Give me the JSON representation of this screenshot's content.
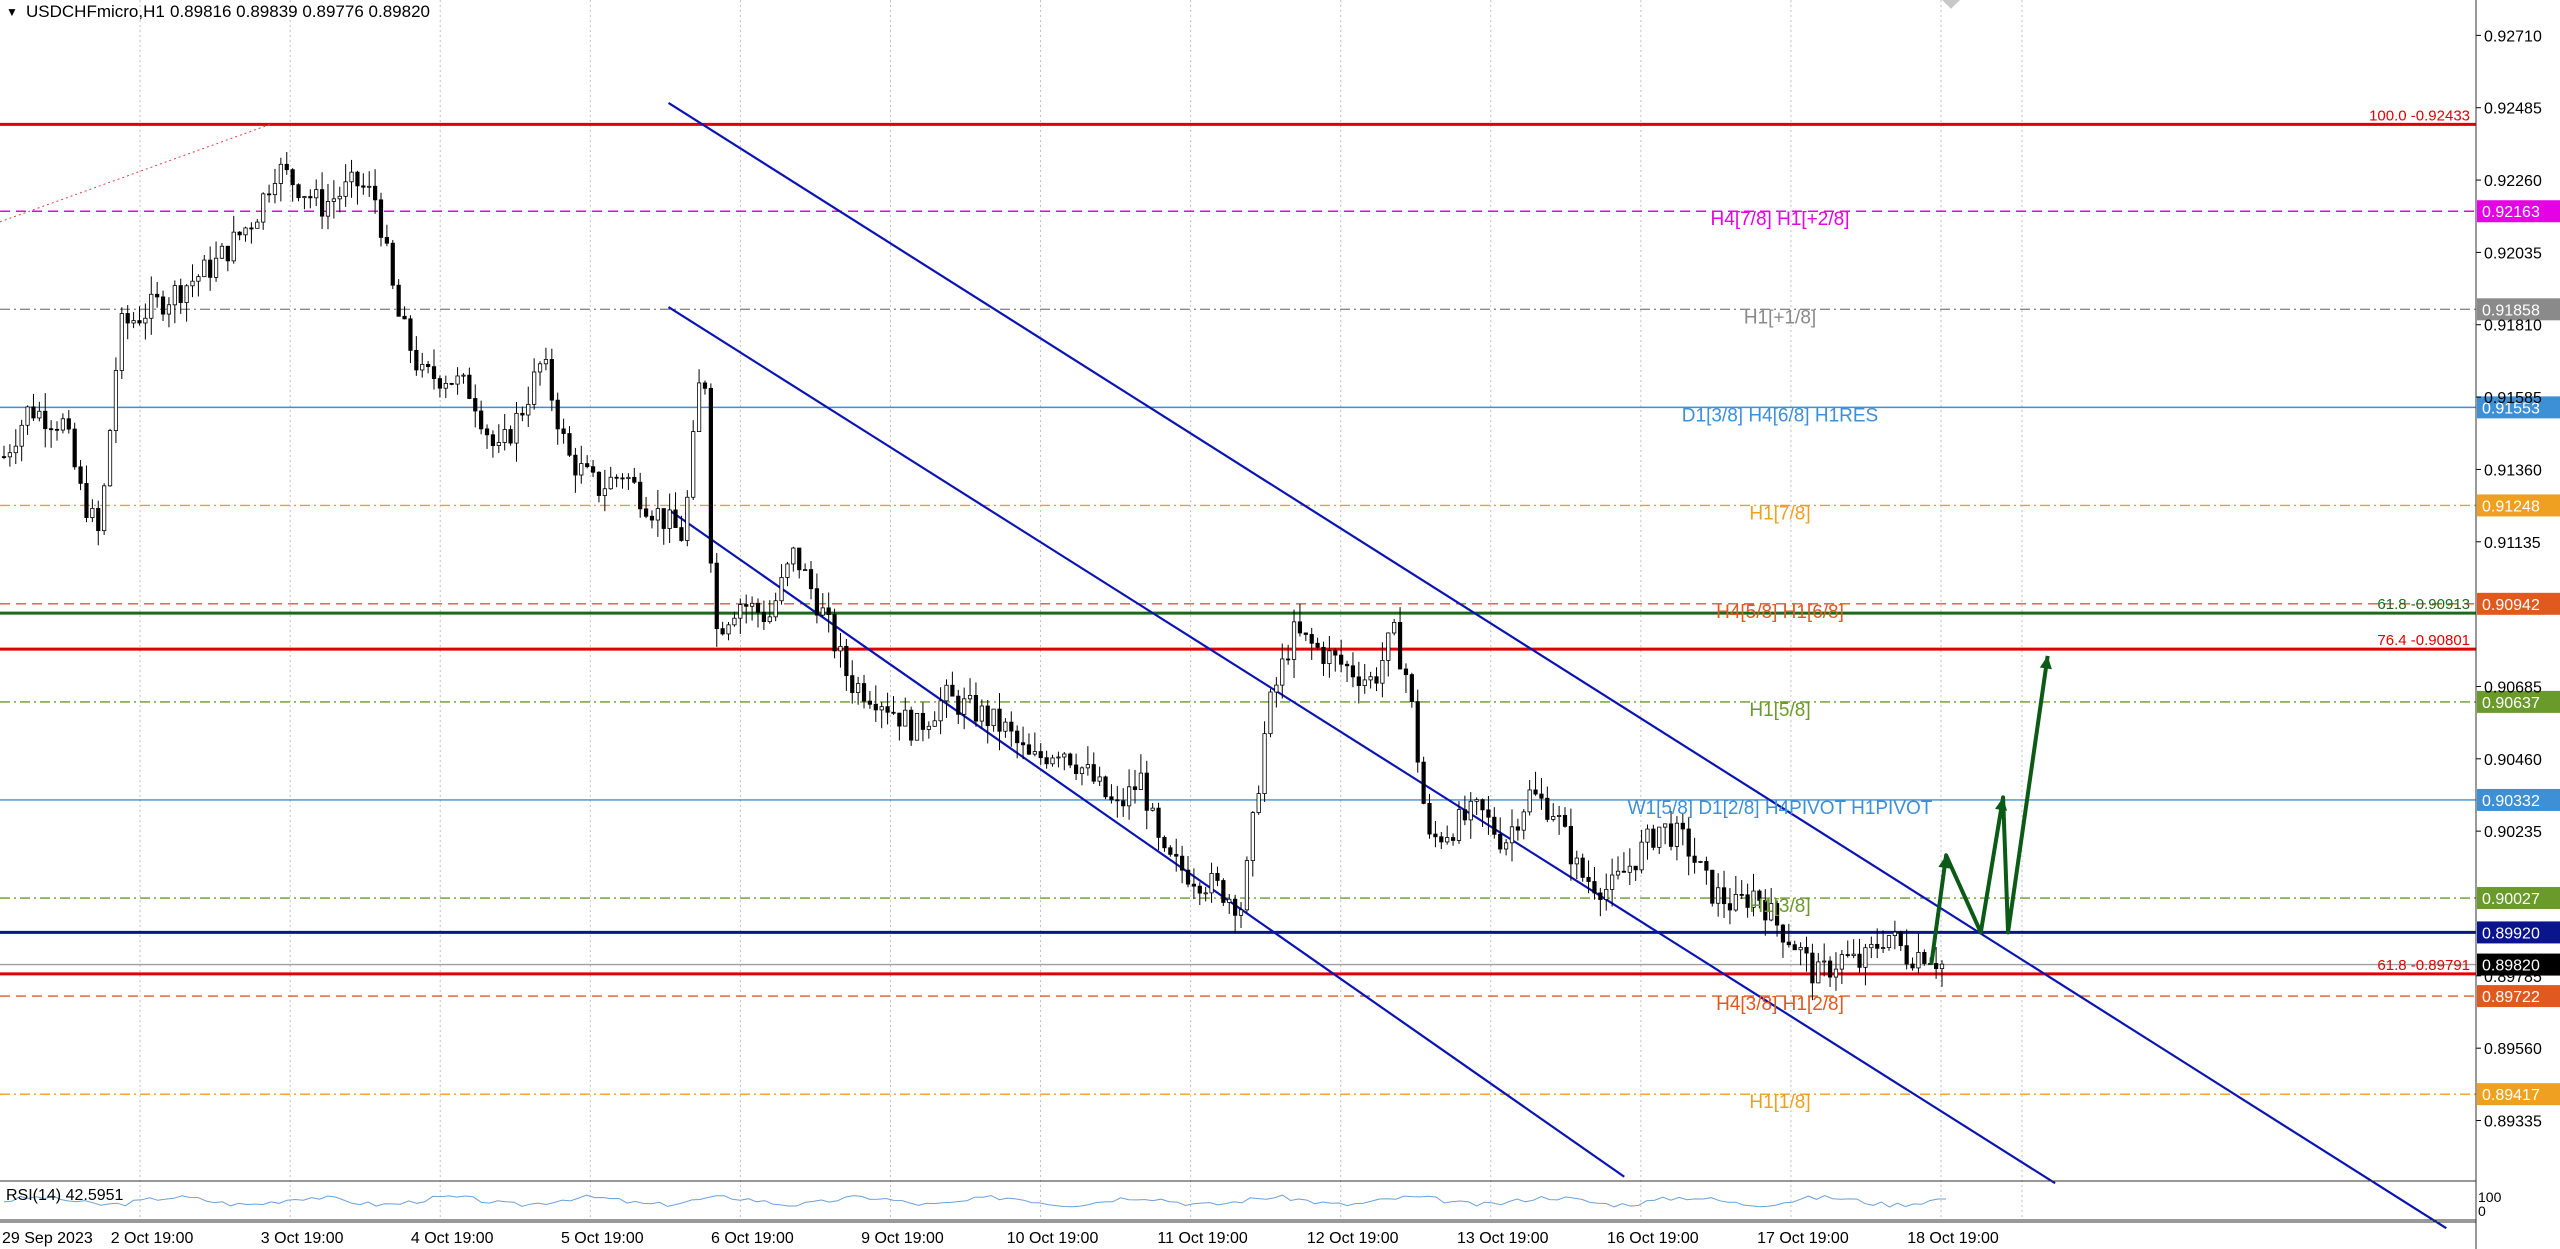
{
  "header": {
    "menu_arrow": "▼",
    "symbol_info": "USDCHFmicro,H1",
    "ohlc": "0.89816 0.89839 0.89776 0.89820"
  },
  "rsi_label": "RSI(14) 42.5951",
  "rsi_scale": [
    "100",
    "0"
  ],
  "colors": {
    "bull_candle": "#ffffff",
    "bear_candle": "#000000",
    "channel": "#0a14b4",
    "fib": "#e00000",
    "arrow": "#0b5a16",
    "grid": "#9a9a9a"
  },
  "chart_data": {
    "type": "candlestick",
    "symbol": "USDCHFmicro",
    "timeframe": "H1",
    "ylim": [
      0.8915,
      0.9282
    ],
    "x_labels": [
      "29 Sep 2023",
      "2 Oct 19:00",
      "3 Oct 19:00",
      "4 Oct 19:00",
      "5 Oct 19:00",
      "6 Oct 19:00",
      "9 Oct 19:00",
      "10 Oct 19:00",
      "11 Oct 19:00",
      "12 Oct 19:00",
      "13 Oct 19:00",
      "16 Oct 19:00",
      "17 Oct 19:00",
      "18 Oct 19:00"
    ],
    "y_ticks": [
      "0.92710",
      "0.92485",
      "0.92260",
      "0.92035",
      "0.91810",
      "0.91585",
      "0.91360",
      "0.91135",
      "0.90685",
      "0.90460",
      "0.90235",
      "0.89785",
      "0.89560",
      "0.89335"
    ],
    "price_path": [
      [
        0,
        0.914
      ],
      [
        0.5,
        0.9155
      ],
      [
        1.2,
        0.915
      ],
      [
        1.5,
        0.913
      ],
      [
        1.9,
        0.9115
      ],
      [
        2.3,
        0.918
      ],
      [
        2.8,
        0.9185
      ],
      [
        3.3,
        0.919
      ],
      [
        4.2,
        0.92
      ],
      [
        5.0,
        0.9215
      ],
      [
        5.4,
        0.923
      ],
      [
        5.8,
        0.9225
      ],
      [
        6.3,
        0.9218
      ],
      [
        7.0,
        0.9225
      ],
      [
        7.4,
        0.922
      ],
      [
        7.8,
        0.9185
      ],
      [
        8.3,
        0.9165
      ],
      [
        8.8,
        0.9165
      ],
      [
        9.3,
        0.916
      ],
      [
        9.8,
        0.914
      ],
      [
        10.3,
        0.9155
      ],
      [
        10.7,
        0.917
      ],
      [
        11.2,
        0.914
      ],
      [
        11.8,
        0.913
      ],
      [
        12.3,
        0.9135
      ],
      [
        12.8,
        0.9125
      ],
      [
        13.5,
        0.9115
      ],
      [
        13.9,
        0.9175
      ],
      [
        14.1,
        0.9085
      ],
      [
        14.6,
        0.9095
      ],
      [
        15.2,
        0.909
      ],
      [
        15.7,
        0.911
      ],
      [
        16.3,
        0.909
      ],
      [
        16.8,
        0.907
      ],
      [
        17.4,
        0.9065
      ],
      [
        18.1,
        0.9055
      ],
      [
        18.7,
        0.9065
      ],
      [
        19.4,
        0.906
      ],
      [
        19.9,
        0.9055
      ],
      [
        20.4,
        0.9045
      ],
      [
        21.0,
        0.905
      ],
      [
        21.6,
        0.904
      ],
      [
        22.1,
        0.903
      ],
      [
        22.6,
        0.904
      ],
      [
        23.0,
        0.9015
      ],
      [
        23.6,
        0.901
      ],
      [
        24.2,
        0.9005
      ],
      [
        24.6,
        0.9
      ],
      [
        25.1,
        0.906
      ],
      [
        25.6,
        0.9085
      ],
      [
        26.1,
        0.908
      ],
      [
        26.6,
        0.9075
      ],
      [
        27.2,
        0.907
      ],
      [
        27.6,
        0.9085
      ],
      [
        27.9,
        0.907
      ],
      [
        28.3,
        0.902
      ],
      [
        28.8,
        0.9025
      ],
      [
        29.3,
        0.903
      ],
      [
        29.8,
        0.902
      ],
      [
        30.3,
        0.9035
      ],
      [
        30.8,
        0.903
      ],
      [
        31.3,
        0.901
      ],
      [
        31.9,
        0.9005
      ],
      [
        32.4,
        0.9015
      ],
      [
        32.9,
        0.9025
      ],
      [
        33.4,
        0.902
      ],
      [
        33.9,
        0.9005
      ],
      [
        34.4,
        0.9
      ],
      [
        34.8,
        0.9005
      ],
      [
        35.2,
        0.8995
      ],
      [
        35.6,
        0.8988
      ],
      [
        36.0,
        0.8978
      ],
      [
        36.5,
        0.8984
      ],
      [
        36.9,
        0.8982
      ],
      [
        37.4,
        0.8992
      ],
      [
        37.8,
        0.8985
      ],
      [
        38.2,
        0.8986
      ],
      [
        38.5,
        0.8982
      ]
    ],
    "horizontal_levels": [
      {
        "price": 0.92433,
        "label": "100.0 -0.92433",
        "color": "#e00000",
        "style": "solid"
      },
      {
        "price": 0.92163,
        "label": "H4[7/8] H1[+2/8]",
        "color": "#e600e6",
        "style": "dashed",
        "tag": "0.92163"
      },
      {
        "price": 0.91858,
        "label": "H1[+1/8]",
        "color": "#8a8a8a",
        "style": "dashdot",
        "tag": "0.91858"
      },
      {
        "price": 0.91553,
        "label": "D1[3/8] H4[6/8] H1RES",
        "color": "#3d8fd6",
        "style": "solid",
        "tag": "0.91553"
      },
      {
        "price": 0.91248,
        "label": "H1[7/8]",
        "color": "#f0a020",
        "style": "dashdot",
        "tag": "0.91248"
      },
      {
        "price": 0.90942,
        "label": "H4[5/8] H1[6/8]",
        "color": "#e05a20",
        "style": "dashed",
        "tag": "0.90942"
      },
      {
        "price": 0.90913,
        "label": "61.8 -0.90913",
        "color": "#1a6a1a",
        "style": "solid"
      },
      {
        "price": 0.90801,
        "label": "76.4 -0.90801",
        "color": "#e00000",
        "style": "solid"
      },
      {
        "price": 0.90637,
        "label": "H1[5/8]",
        "color": "#6a9a2a",
        "style": "dashdot",
        "tag": "0.90637"
      },
      {
        "price": 0.90332,
        "label": "W1[5/8] D1[2/8] H4PIVOT H1PIVOT",
        "color": "#3d8fd6",
        "style": "solid",
        "tag": "0.90332"
      },
      {
        "price": 0.90027,
        "label": "H1[3/8]",
        "color": "#6a9a2a",
        "style": "dashdot",
        "tag": "0.90027"
      },
      {
        "price": 0.8992,
        "label": "",
        "color": "#0a148c",
        "style": "solid",
        "tag": "0.89920"
      },
      {
        "price": 0.8982,
        "label": "",
        "color": "#a0a0a0",
        "style": "solid",
        "tag": "0.89820"
      },
      {
        "price": 0.89791,
        "label": "61.8 -0.89791",
        "color": "#e00000",
        "style": "solid"
      },
      {
        "price": 0.89722,
        "label": "H4[3/8] H1[2/8]",
        "color": "#e05a20",
        "style": "dashed",
        "tag": "0.89722"
      },
      {
        "price": 0.89417,
        "label": "H1[1/8]",
        "color": "#f0a020",
        "style": "dashdot",
        "tag": "0.89417"
      }
    ],
    "channels": [
      {
        "points": [
          [
            0.27,
            0.925
          ],
          [
            0.988,
            0.89
          ]
        ]
      },
      {
        "points": [
          [
            0.27,
            0.91865
          ],
          [
            0.83,
            0.8914
          ]
        ]
      },
      {
        "points": [
          [
            0.27,
            0.91235
          ],
          [
            0.656,
            0.8916
          ]
        ]
      }
    ],
    "projection_arrow": [
      [
        0.78,
        0.8982
      ],
      [
        0.786,
        0.9016
      ],
      [
        0.8,
        0.8992
      ],
      [
        0.809,
        0.9034
      ],
      [
        0.811,
        0.8992
      ],
      [
        0.827,
        0.9078
      ]
    ],
    "rsi": {
      "period": 14,
      "value": 42.5951,
      "ylim": [
        0,
        100
      ]
    },
    "grid": true
  }
}
